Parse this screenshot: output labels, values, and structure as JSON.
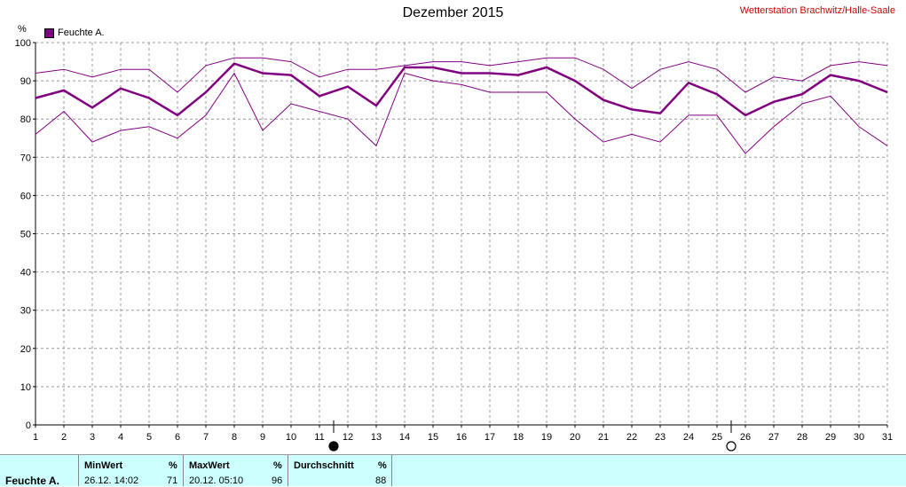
{
  "header": {
    "title": "Dezember 2015",
    "station": "Wetterstation Brachwitz/Halle-Saale"
  },
  "legend": {
    "label": "Feuchte A.",
    "color": "#800080"
  },
  "axis": {
    "y_unit": "%"
  },
  "stats": {
    "row_label": "Feuchte A.",
    "min_header": "MinWert",
    "min_unit": "%",
    "min_time": "26.12.  14:02",
    "min_value": "71",
    "max_header": "MaxWert",
    "max_unit": "%",
    "max_time": "20.12.  05:10",
    "max_value": "96",
    "avg_header": "Durchschnitt",
    "avg_unit": "%",
    "avg_value": "88"
  },
  "chart_data": {
    "type": "line",
    "title": "Dezember 2015",
    "xlabel": "",
    "ylabel": "%",
    "x": [
      1,
      2,
      3,
      4,
      5,
      6,
      7,
      8,
      9,
      10,
      11,
      12,
      13,
      14,
      15,
      16,
      17,
      18,
      19,
      20,
      21,
      22,
      23,
      24,
      25,
      26,
      27,
      28,
      29,
      30,
      31
    ],
    "xlim": [
      1,
      31
    ],
    "ylim": [
      0,
      100
    ],
    "yticks": [
      0,
      10,
      20,
      30,
      40,
      50,
      60,
      70,
      80,
      90,
      100
    ],
    "grid": true,
    "legend_position": "top-left",
    "series": [
      {
        "name": "Feuchte A.",
        "role": "mean",
        "color": "#800080",
        "values": [
          85.5,
          87.5,
          83,
          88,
          85.5,
          81,
          87,
          94.5,
          92,
          91.5,
          86,
          88.5,
          83.5,
          93.5,
          93.5,
          92,
          92,
          91.5,
          93.5,
          90,
          85,
          82.5,
          81.5,
          89.5,
          86.5,
          81,
          84.5,
          86.5,
          91.5,
          90,
          87
        ]
      },
      {
        "role": "max",
        "color": "#800080",
        "values": [
          92,
          93,
          91,
          93,
          93,
          87,
          94,
          96,
          96,
          95,
          91,
          93,
          93,
          94,
          95,
          95,
          94,
          95,
          96,
          96,
          93,
          88,
          93,
          95,
          93,
          87,
          91,
          90,
          94,
          95,
          94
        ]
      },
      {
        "role": "min",
        "color": "#800080",
        "values": [
          76,
          82,
          74,
          77,
          78,
          75,
          81,
          92,
          77,
          84,
          82,
          80,
          73,
          92,
          90,
          89,
          87,
          87,
          87,
          80,
          74,
          76,
          74,
          81,
          81,
          71,
          78,
          84,
          86,
          78,
          73
        ]
      }
    ],
    "moon_phases": [
      {
        "phase": "new",
        "x": 11.5
      },
      {
        "phase": "full",
        "x": 25.5
      }
    ]
  }
}
